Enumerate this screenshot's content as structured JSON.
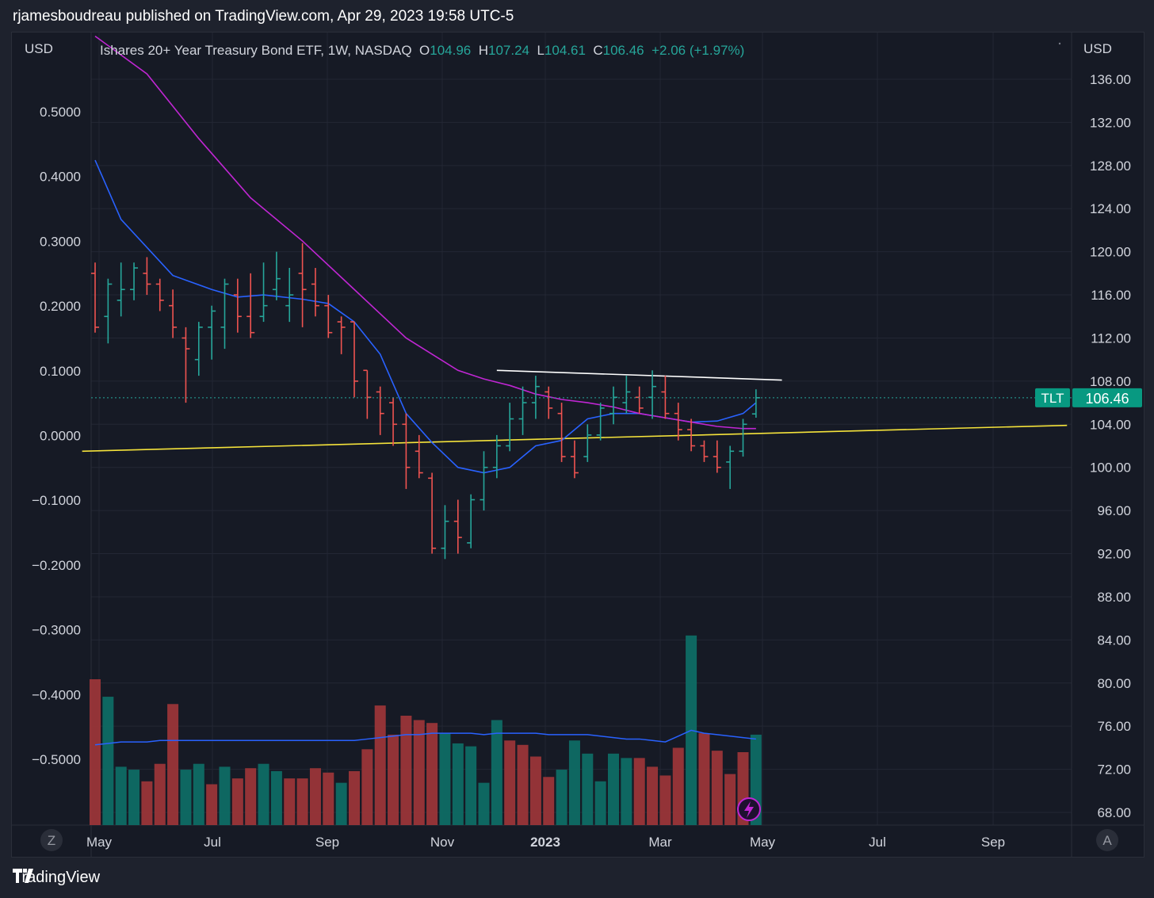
{
  "header": {
    "text": "rjamesboudreau published on TradingView.com, Apr 29, 2023 19:58 UTC-5"
  },
  "legend": {
    "symbol": "Ishares 20+ Year Treasury Bond ETF, 1W, NASDAQ",
    "o_label": "O",
    "o": "104.96",
    "h_label": "H",
    "h": "107.24",
    "l_label": "L",
    "l": "104.61",
    "c_label": "C",
    "c": "106.46",
    "change": "+2.06 (+1.97%)"
  },
  "left_axis": {
    "unit": "USD",
    "ticks": [
      "0.5000",
      "0.4000",
      "0.3000",
      "0.2000",
      "0.1000",
      "0.0000",
      "−0.1000",
      "−0.2000",
      "−0.3000",
      "−0.4000",
      "−0.5000"
    ]
  },
  "right_axis": {
    "unit": "USD",
    "ticks": [
      "136.00",
      "132.00",
      "128.00",
      "124.00",
      "120.00",
      "116.00",
      "112.00",
      "108.00",
      "104.00",
      "100.00",
      "96.00",
      "92.00",
      "88.00",
      "84.00",
      "80.00",
      "76.00",
      "72.00",
      "68.00"
    ]
  },
  "x_axis": {
    "ticks": [
      "May",
      "Jul",
      "Sep",
      "Nov",
      "2023",
      "Mar",
      "May",
      "Jul",
      "Sep"
    ],
    "bold_tick": "2023"
  },
  "badge": {
    "symbol": "TLT",
    "price": "106.46"
  },
  "corner_buttons": {
    "left": "Z",
    "right": "A"
  },
  "footer": {
    "brand": "TradingView"
  },
  "colors": {
    "up": "#26a69a",
    "down": "#ef5350",
    "ma_fast": "#2962ff",
    "ma_slow": "#c026d3",
    "support": "#f5e33b",
    "resistance": "#ffffff"
  },
  "chart_data": {
    "type": "ohlc",
    "title": "Ishares 20+ Year Treasury Bond ETF, 1W, NASDAQ",
    "timeframe": "1W",
    "ylabel": "USD",
    "ylim": [
      66,
      140
    ],
    "x_range": [
      "2022-04-25",
      "2023-09-30"
    ],
    "series": [
      {
        "date": "2022-05-02",
        "o": 118.0,
        "h": 119.0,
        "l": 112.5,
        "c": 113.0
      },
      {
        "date": "2022-05-09",
        "o": 114.0,
        "h": 117.5,
        "l": 111.5,
        "c": 117.0
      },
      {
        "date": "2022-05-16",
        "o": 115.5,
        "h": 119.0,
        "l": 114.0,
        "c": 116.5
      },
      {
        "date": "2022-05-23",
        "o": 116.5,
        "h": 119.0,
        "l": 115.5,
        "c": 118.5
      },
      {
        "date": "2022-05-30",
        "o": 118.0,
        "h": 119.5,
        "l": 116.0,
        "c": 117.0
      },
      {
        "date": "2022-06-06",
        "o": 117.0,
        "h": 117.5,
        "l": 114.5,
        "c": 115.5
      },
      {
        "date": "2022-06-13",
        "o": 115.0,
        "h": 116.5,
        "l": 112.0,
        "c": 113.0
      },
      {
        "date": "2022-06-20",
        "o": 112.0,
        "h": 113.0,
        "l": 106.0,
        "c": 111.0
      },
      {
        "date": "2022-06-27",
        "o": 110.0,
        "h": 113.5,
        "l": 108.5,
        "c": 113.0
      },
      {
        "date": "2022-07-04",
        "o": 113.0,
        "h": 115.0,
        "l": 110.0,
        "c": 114.5
      },
      {
        "date": "2022-07-11",
        "o": 113.0,
        "h": 117.5,
        "l": 111.0,
        "c": 117.0
      },
      {
        "date": "2022-07-18",
        "o": 116.0,
        "h": 117.5,
        "l": 112.5,
        "c": 114.0
      },
      {
        "date": "2022-07-25",
        "o": 114.0,
        "h": 118.0,
        "l": 112.0,
        "c": 112.5
      },
      {
        "date": "2022-08-01",
        "o": 114.0,
        "h": 119.0,
        "l": 113.5,
        "c": 115.0
      },
      {
        "date": "2022-08-08",
        "o": 116.5,
        "h": 120.0,
        "l": 115.5,
        "c": 117.5
      },
      {
        "date": "2022-08-15",
        "o": 115.0,
        "h": 118.5,
        "l": 113.5,
        "c": 116.0
      },
      {
        "date": "2022-08-22",
        "o": 118.0,
        "h": 120.8,
        "l": 113.0,
        "c": 116.5
      },
      {
        "date": "2022-08-29",
        "o": 117.0,
        "h": 118.5,
        "l": 114.0,
        "c": 115.0
      },
      {
        "date": "2022-09-05",
        "o": 115.0,
        "h": 116.0,
        "l": 112.0,
        "c": 112.5
      },
      {
        "date": "2022-09-12",
        "o": 113.5,
        "h": 114.0,
        "l": 110.5,
        "c": 113.0
      },
      {
        "date": "2022-09-19",
        "o": 113.5,
        "h": 113.5,
        "l": 106.5,
        "c": 108.0
      },
      {
        "date": "2022-09-26",
        "o": 109.0,
        "h": 109.0,
        "l": 104.5,
        "c": 106.5
      },
      {
        "date": "2022-10-03",
        "o": 107.0,
        "h": 107.5,
        "l": 103.0,
        "c": 105.0
      },
      {
        "date": "2022-10-10",
        "o": 106.0,
        "h": 106.5,
        "l": 102.0,
        "c": 104.0
      },
      {
        "date": "2022-10-17",
        "o": 104.0,
        "h": 105.0,
        "l": 98.0,
        "c": 100.0
      },
      {
        "date": "2022-10-24",
        "o": 101.5,
        "h": 103.0,
        "l": 99.0,
        "c": 99.5
      },
      {
        "date": "2022-10-31",
        "o": 99.0,
        "h": 99.5,
        "l": 92.0,
        "c": 92.5
      },
      {
        "date": "2022-11-07",
        "o": 92.5,
        "h": 96.5,
        "l": 91.5,
        "c": 95.0
      },
      {
        "date": "2022-11-14",
        "o": 95.0,
        "h": 97.0,
        "l": 92.0,
        "c": 93.5
      },
      {
        "date": "2022-11-21",
        "o": 93.0,
        "h": 97.5,
        "l": 92.5,
        "c": 97.0
      },
      {
        "date": "2022-11-28",
        "o": 97.0,
        "h": 101.5,
        "l": 96.0,
        "c": 100.0
      },
      {
        "date": "2022-12-05",
        "o": 100.0,
        "h": 103.0,
        "l": 99.0,
        "c": 102.0
      },
      {
        "date": "2022-12-12",
        "o": 102.0,
        "h": 106.0,
        "l": 101.5,
        "c": 104.5
      },
      {
        "date": "2022-12-19",
        "o": 104.5,
        "h": 107.5,
        "l": 103.0,
        "c": 106.0
      },
      {
        "date": "2022-12-26",
        "o": 106.0,
        "h": 108.5,
        "l": 104.5,
        "c": 107.5
      },
      {
        "date": "2023-01-02",
        "o": 107.0,
        "h": 107.5,
        "l": 104.5,
        "c": 105.5
      },
      {
        "date": "2023-01-09",
        "o": 105.0,
        "h": 106.0,
        "l": 100.5,
        "c": 101.0
      },
      {
        "date": "2023-01-16",
        "o": 101.0,
        "h": 102.5,
        "l": 99.0,
        "c": 99.5
      },
      {
        "date": "2023-01-23",
        "o": 101.0,
        "h": 104.0,
        "l": 100.5,
        "c": 103.0
      },
      {
        "date": "2023-01-30",
        "o": 103.0,
        "h": 106.0,
        "l": 102.5,
        "c": 105.5
      },
      {
        "date": "2023-02-06",
        "o": 105.0,
        "h": 107.5,
        "l": 104.0,
        "c": 106.5
      },
      {
        "date": "2023-02-13",
        "o": 106.0,
        "h": 108.5,
        "l": 105.0,
        "c": 107.0
      },
      {
        "date": "2023-02-20",
        "o": 106.5,
        "h": 107.5,
        "l": 105.0,
        "c": 105.5
      },
      {
        "date": "2023-02-27",
        "o": 106.5,
        "h": 109.0,
        "l": 104.5,
        "c": 107.5
      },
      {
        "date": "2023-03-06",
        "o": 107.0,
        "h": 108.5,
        "l": 104.5,
        "c": 105.0
      },
      {
        "date": "2023-03-13",
        "o": 105.0,
        "h": 106.0,
        "l": 102.5,
        "c": 103.5
      },
      {
        "date": "2023-03-20",
        "o": 103.5,
        "h": 104.5,
        "l": 101.5,
        "c": 102.0
      },
      {
        "date": "2023-03-27",
        "o": 102.0,
        "h": 102.5,
        "l": 100.5,
        "c": 101.0
      },
      {
        "date": "2023-04-03",
        "o": 101.0,
        "h": 102.5,
        "l": 99.5,
        "c": 100.0
      },
      {
        "date": "2023-04-10",
        "o": 100.5,
        "h": 102.0,
        "l": 98.0,
        "c": 101.5
      },
      {
        "date": "2023-04-17",
        "o": 101.5,
        "h": 104.5,
        "l": 101.0,
        "c": 104.0
      },
      {
        "date": "2023-04-24",
        "o": 104.96,
        "h": 107.24,
        "l": 104.61,
        "c": 106.46
      }
    ],
    "moving_averages": [
      {
        "name": "fast MA",
        "color": "#2962ff",
        "points": [
          [
            0,
            128.5
          ],
          [
            2,
            123.0
          ],
          [
            6,
            117.8
          ],
          [
            9,
            116.5
          ],
          [
            11,
            115.8
          ],
          [
            13,
            116.0
          ],
          [
            16,
            115.6
          ],
          [
            18,
            115.2
          ],
          [
            20,
            113.5
          ],
          [
            22,
            110.5
          ],
          [
            24,
            105.0
          ],
          [
            26,
            102.3
          ],
          [
            28,
            100.0
          ],
          [
            30,
            99.5
          ],
          [
            32,
            100.0
          ],
          [
            34,
            102.0
          ],
          [
            36,
            102.5
          ],
          [
            38,
            104.5
          ],
          [
            40,
            105.0
          ],
          [
            42,
            105.0
          ],
          [
            44,
            104.6
          ],
          [
            46,
            104.2
          ],
          [
            48,
            104.3
          ],
          [
            50,
            105.0
          ],
          [
            51,
            106.0
          ]
        ]
      },
      {
        "name": "slow MA",
        "color": "#c026d3",
        "points": [
          [
            0,
            140.0
          ],
          [
            4,
            136.5
          ],
          [
            8,
            130.5
          ],
          [
            12,
            125.0
          ],
          [
            16,
            121.0
          ],
          [
            20,
            116.5
          ],
          [
            24,
            112.0
          ],
          [
            28,
            109.0
          ],
          [
            30,
            108.2
          ],
          [
            32,
            107.6
          ],
          [
            34,
            106.8
          ],
          [
            36,
            106.3
          ],
          [
            38,
            106.0
          ],
          [
            40,
            105.6
          ],
          [
            42,
            105.0
          ],
          [
            44,
            104.6
          ],
          [
            46,
            104.2
          ],
          [
            48,
            103.8
          ],
          [
            50,
            103.6
          ],
          [
            51,
            103.6
          ]
        ]
      }
    ],
    "trendlines": [
      {
        "name": "support",
        "color": "#f5e33b",
        "from": [
          -1,
          101.5
        ],
        "to": [
          75,
          103.9
        ]
      },
      {
        "name": "resistance",
        "color": "#ffffff",
        "from": [
          31,
          109.0
        ],
        "to": [
          53,
          108.1
        ]
      }
    ],
    "last_price": 106.46,
    "volume": {
      "left_axis_ylim": [
        -0.6,
        0.6
      ],
      "values": [
        1.0,
        0.88,
        0.4,
        0.38,
        0.3,
        0.42,
        0.83,
        0.38,
        0.42,
        0.28,
        0.4,
        0.32,
        0.39,
        0.42,
        0.37,
        0.32,
        0.32,
        0.39,
        0.36,
        0.29,
        0.37,
        0.52,
        0.82,
        0.62,
        0.75,
        0.72,
        0.7,
        0.63,
        0.56,
        0.54,
        0.29,
        0.72,
        0.58,
        0.55,
        0.47,
        0.33,
        0.38,
        0.58,
        0.49,
        0.3,
        0.49,
        0.46,
        0.46,
        0.4,
        0.34,
        0.53,
        1.3,
        0.63,
        0.51,
        0.35,
        0.5,
        0.62
      ],
      "direction": [
        "down",
        "up",
        "up",
        "up",
        "down",
        "down",
        "down",
        "up",
        "up",
        "down",
        "up",
        "down",
        "down",
        "up",
        "up",
        "down",
        "down",
        "down",
        "down",
        "up",
        "down",
        "down",
        "down",
        "down",
        "down",
        "down",
        "down",
        "up",
        "up",
        "up",
        "up",
        "up",
        "down",
        "down",
        "down",
        "down",
        "up",
        "up",
        "up",
        "up",
        "up",
        "up",
        "down",
        "down",
        "down",
        "down",
        "up",
        "down",
        "down",
        "down",
        "down",
        "up"
      ],
      "avg_line": [
        0.55,
        0.56,
        0.57,
        0.57,
        0.57,
        0.58,
        0.58,
        0.58,
        0.58,
        0.58,
        0.58,
        0.58,
        0.58,
        0.58,
        0.58,
        0.58,
        0.58,
        0.58,
        0.58,
        0.58,
        0.58,
        0.59,
        0.6,
        0.61,
        0.62,
        0.62,
        0.63,
        0.63,
        0.63,
        0.63,
        0.62,
        0.63,
        0.63,
        0.63,
        0.63,
        0.62,
        0.62,
        0.62,
        0.62,
        0.61,
        0.6,
        0.59,
        0.59,
        0.58,
        0.57,
        0.61,
        0.65,
        0.63,
        0.62,
        0.61,
        0.6,
        0.59
      ]
    }
  }
}
